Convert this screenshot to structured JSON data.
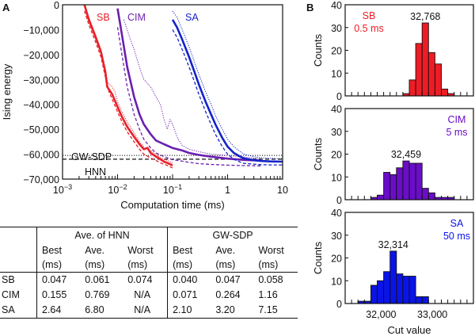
{
  "panel_a": {
    "label": "A",
    "ylabel": "Ising energy",
    "xlabel": "Computation time (ms)",
    "yticks": [
      "0",
      "−10,000",
      "−20,000",
      "−30,000",
      "−40,000",
      "−50,000",
      "−60,000",
      "−70,000"
    ],
    "xticks": [
      {
        "base": "10",
        "exp": "−3"
      },
      {
        "base": "10",
        "exp": "−2"
      },
      {
        "base": "10",
        "exp": "−1"
      },
      {
        "base": "1",
        "exp": ""
      },
      {
        "base": "10",
        "exp": ""
      }
    ],
    "ref_lines": {
      "gw_sdp_label": "GW-SDP",
      "hnn_label": "HNN"
    }
  },
  "chart_data": [
    {
      "type": "line",
      "panel": "A",
      "title": "",
      "xlabel": "Computation time (ms)",
      "ylabel": "Ising energy",
      "xscale": "log",
      "xlim": [
        0.001,
        10
      ],
      "ylim": [
        -70000,
        0
      ],
      "grid": false,
      "reference_lines": [
        {
          "name": "GW-SDP",
          "y": -60500,
          "style": "dotted",
          "color": "#111111"
        },
        {
          "name": "HNN",
          "y": -62000,
          "style": "dashed",
          "color": "#111111"
        }
      ],
      "series": [
        {
          "name": "SB",
          "stat": "average",
          "style": "solid",
          "color": "#e8202a",
          "x": [
            0.0025,
            0.003,
            0.004,
            0.005,
            0.006,
            0.0065,
            0.008,
            0.01,
            0.012,
            0.015,
            0.02,
            0.025,
            0.03,
            0.035,
            0.04,
            0.05,
            0.06,
            0.07,
            0.08,
            0.1
          ],
          "y": [
            0,
            -6000,
            -13000,
            -19000,
            -27000,
            -33000,
            -36000,
            -41000,
            -45000,
            -49000,
            -53000,
            -56000,
            -58000,
            -57500,
            -59500,
            -61000,
            -62000,
            -63000,
            -63500,
            -64500
          ]
        },
        {
          "name": "SB",
          "stat": "best",
          "style": "dashed",
          "color": "#e8202a",
          "x": [
            0.0025,
            0.003,
            0.004,
            0.005,
            0.006,
            0.007,
            0.008,
            0.01,
            0.012,
            0.015,
            0.02,
            0.025,
            0.03,
            0.04,
            0.05,
            0.06,
            0.08,
            0.1
          ],
          "y": [
            -2500,
            -8000,
            -15000,
            -21000,
            -29000,
            -35000,
            -38000,
            -43000,
            -47000,
            -51000,
            -55000,
            -58000,
            -60000,
            -61500,
            -62500,
            -63500,
            -64500,
            -65500
          ]
        },
        {
          "name": "SB",
          "stat": "worst",
          "style": "dotted",
          "color": "#e8202a",
          "x": [
            0.0025,
            0.003,
            0.004,
            0.005,
            0.006,
            0.0065,
            0.008,
            0.009,
            0.01,
            0.012,
            0.015,
            0.02,
            0.025,
            0.03,
            0.04,
            0.05,
            0.06,
            0.08,
            0.1
          ],
          "y": [
            0,
            -5000,
            -12000,
            -18000,
            -26000,
            -31000,
            -33000,
            -35000,
            -39000,
            -43000,
            -47000,
            -51500,
            -55000,
            -57000,
            -58500,
            -60000,
            -61500,
            -62500,
            -63500
          ]
        },
        {
          "name": "CIM",
          "stat": "average",
          "style": "solid",
          "color": "#6a1fb0",
          "x": [
            0.01,
            0.012,
            0.015,
            0.02,
            0.025,
            0.03,
            0.04,
            0.05,
            0.07,
            0.1,
            0.15,
            0.2,
            0.3,
            0.5,
            1,
            2,
            4
          ],
          "y": [
            -1500,
            -12000,
            -25000,
            -37000,
            -44000,
            -48000,
            -52000,
            -54500,
            -56000,
            -57500,
            -58500,
            -59500,
            -60300,
            -61000,
            -61800,
            -62300,
            -62600
          ]
        },
        {
          "name": "CIM",
          "stat": "best",
          "style": "dashed",
          "color": "#6a1fb0",
          "x": [
            0.01,
            0.012,
            0.015,
            0.02,
            0.025,
            0.03,
            0.04,
            0.05,
            0.07,
            0.1,
            0.15,
            0.2,
            0.3,
            0.5,
            1,
            2,
            4
          ],
          "y": [
            -9000,
            -20000,
            -33000,
            -44000,
            -50000,
            -54000,
            -57500,
            -59500,
            -61000,
            -62200,
            -62800,
            -63300,
            -63800,
            -64100,
            -64400,
            -64600,
            -64700
          ]
        },
        {
          "name": "CIM",
          "stat": "worst",
          "style": "dotted",
          "color": "#6a1fb0",
          "x": [
            0.013,
            0.016,
            0.02,
            0.025,
            0.03,
            0.04,
            0.05,
            0.06,
            0.07,
            0.08,
            0.09,
            0.1,
            0.12,
            0.15,
            0.2,
            0.3,
            0.5,
            1,
            2,
            4
          ],
          "y": [
            -6000,
            -12000,
            -18000,
            -25000,
            -30000,
            -33000,
            -37000,
            -40000,
            -46000,
            -50000,
            -46000,
            -48000,
            -53000,
            -56500,
            -58000,
            -59000,
            -60000,
            -60500,
            -61200,
            -61800
          ]
        },
        {
          "name": "SA",
          "stat": "average",
          "style": "solid",
          "color": "#1423c8",
          "x": [
            0.1,
            0.12,
            0.15,
            0.2,
            0.25,
            0.3,
            0.4,
            0.5,
            0.6,
            0.8,
            1,
            1.3,
            1.7,
            2,
            3,
            4,
            6,
            10
          ],
          "y": [
            -6000,
            -9000,
            -14000,
            -21000,
            -27000,
            -32000,
            -39000,
            -44000,
            -48000,
            -53500,
            -57000,
            -59500,
            -61000,
            -61700,
            -62400,
            -62700,
            -62900,
            -63000
          ]
        },
        {
          "name": "SA",
          "stat": "best",
          "style": "dashed",
          "color": "#1423c8",
          "x": [
            0.1,
            0.12,
            0.15,
            0.2,
            0.25,
            0.3,
            0.4,
            0.5,
            0.6,
            0.8,
            1,
            1.3,
            1.7,
            2,
            3,
            4,
            6,
            10
          ],
          "y": [
            -10000,
            -13000,
            -18000,
            -25000,
            -31000,
            -36000,
            -43000,
            -48000,
            -52000,
            -57000,
            -60000,
            -62000,
            -63200,
            -63700,
            -64000,
            -64200,
            -64300,
            -64300
          ]
        },
        {
          "name": "SA",
          "stat": "worst",
          "style": "dotted",
          "color": "#1423c8",
          "x": [
            0.1,
            0.12,
            0.15,
            0.2,
            0.25,
            0.3,
            0.4,
            0.5,
            0.6,
            0.8,
            1,
            1.3,
            1.7,
            2,
            3,
            4,
            6,
            10
          ],
          "y": [
            -2500,
            -5000,
            -10000,
            -17000,
            -23000,
            -28000,
            -35000,
            -40000,
            -44500,
            -50000,
            -54000,
            -57000,
            -59000,
            -60000,
            -61000,
            -61400,
            -61700,
            -61800
          ]
        }
      ],
      "annotations": [
        {
          "text": "SB",
          "color": "#e8202a"
        },
        {
          "text": "CIM",
          "color": "#6a1fb0"
        },
        {
          "text": "SA",
          "color": "#1423c8"
        },
        {
          "text": "GW-SDP",
          "color": "#111111"
        },
        {
          "text": "HNN",
          "color": "#111111"
        }
      ]
    },
    {
      "type": "bar",
      "panel": "B",
      "subplot": "SB",
      "title": "SB 0.5 ms",
      "xlabel": "Cut value",
      "ylabel": "Counts",
      "ylim": [
        0,
        40
      ],
      "xlim": [
        31300,
        33800
      ],
      "bin_width": 125,
      "bin_start": 31300,
      "counts": [
        0,
        0,
        0,
        0,
        0,
        0,
        0,
        0,
        0,
        1,
        7,
        23,
        32,
        19,
        14,
        3,
        1,
        0,
        0,
        0
      ],
      "peak_label": "32,768"
    },
    {
      "type": "bar",
      "panel": "B",
      "subplot": "CIM",
      "title": "CIM 5 ms",
      "xlabel": "Cut value",
      "ylabel": "Counts",
      "ylim": [
        0,
        40
      ],
      "xlim": [
        31300,
        33800
      ],
      "bin_width": 125,
      "bin_start": 31300,
      "counts": [
        0,
        0,
        0,
        0,
        1,
        2,
        12,
        11,
        14,
        17,
        16,
        16,
        5,
        3,
        1,
        1,
        1,
        0,
        0,
        0
      ],
      "peak_label": "32,459"
    },
    {
      "type": "bar",
      "panel": "B",
      "subplot": "SA",
      "title": "SA 50 ms",
      "xlabel": "Cut value",
      "ylabel": "Counts",
      "ylim": [
        0,
        40
      ],
      "xlim": [
        31300,
        33800
      ],
      "bin_width": 125,
      "bin_start": 31300,
      "counts": [
        0,
        0,
        1,
        1,
        8,
        10,
        14,
        23,
        13,
        12,
        12,
        3,
        3,
        0,
        0,
        0,
        0,
        0,
        0,
        0
      ],
      "peak_label": "32,314"
    },
    {
      "type": "table",
      "panel": "A",
      "columns": [
        "",
        "Ave. of HNN Best (ms)",
        "Ave. of HNN Ave. (ms)",
        "Ave. of HNN Worst (ms)",
        "GW-SDP Best (ms)",
        "GW-SDP Ave. (ms)",
        "GW-SDP Worst (ms)"
      ],
      "rows": [
        [
          "SB",
          "0.047",
          "0.061",
          "0.074",
          "0.040",
          "0.047",
          "0.058"
        ],
        [
          "CIM",
          "0.155",
          "0.769",
          "N/A",
          "0.071",
          "0.264",
          "1.16"
        ],
        [
          "SA",
          "2.64",
          "6.80",
          "N/A",
          "2.10",
          "3.20",
          "7.15"
        ]
      ]
    }
  ],
  "panel_b": {
    "label": "B",
    "ylabel": "Counts",
    "xlabel": "Cut value",
    "yticks": [
      "0",
      "10",
      "20",
      "30",
      "40"
    ],
    "xticks": [
      {
        "value": 32000,
        "label": "32,000"
      },
      {
        "value": 33000,
        "label": "33,000"
      }
    ],
    "subplots": [
      {
        "name": "SB",
        "time": "0.5 ms",
        "peak": "32,768",
        "color": "#ee1c24"
      },
      {
        "name": "CIM",
        "time": "5 ms",
        "peak": "32,459",
        "color": "#6a0dc8"
      },
      {
        "name": "SA",
        "time": "50 ms",
        "peak": "32,314",
        "color": "#0a14e6"
      }
    ]
  },
  "table": {
    "group_headers": [
      "Ave. of HNN",
      "GW-SDP"
    ],
    "sub_headers": [
      {
        "top": "Best",
        "bottom": "(ms)"
      },
      {
        "top": "Ave.",
        "bottom": "(ms)"
      },
      {
        "top": "Worst",
        "bottom": "(ms)"
      },
      {
        "top": "Best",
        "bottom": "(ms)"
      },
      {
        "top": "Ave.",
        "bottom": "(ms)"
      },
      {
        "top": "Worst",
        "bottom": "(ms)"
      }
    ],
    "rows": [
      {
        "label": "SB",
        "cells": [
          "0.047",
          "0.061",
          "0.074",
          "0.040",
          "0.047",
          "0.058"
        ]
      },
      {
        "label": "CIM",
        "cells": [
          "0.155",
          "0.769",
          "N/A",
          "0.071",
          "0.264",
          "1.16"
        ]
      },
      {
        "label": "SA",
        "cells": [
          "2.64",
          "6.80",
          "N/A",
          "2.10",
          "3.20",
          "7.15"
        ]
      }
    ]
  }
}
